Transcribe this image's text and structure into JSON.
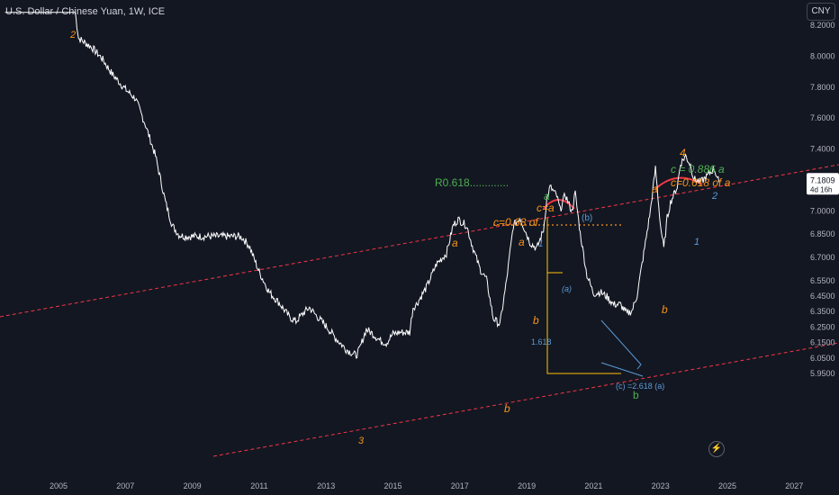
{
  "header": {
    "title": "U.S. Dollar / Chinese Yuan, 1W, ICE",
    "currency_button": "CNY"
  },
  "price_label": {
    "price": "7.1809",
    "countdown": "4d 16h"
  },
  "chart_data": {
    "type": "line",
    "ylim": [
      5.88,
      8.27
    ],
    "xlim": [
      2003.4,
      2027.1
    ],
    "y_ticks": [
      "8.2000",
      "8.0000",
      "7.8000",
      "7.6000",
      "7.4000",
      "7.2000",
      "7.0000",
      "6.8500",
      "6.7000",
      "6.5500",
      "6.4500",
      "6.3500",
      "6.2500",
      "6.1500",
      "6.0500",
      "5.9500"
    ],
    "y_tick_values": [
      8.2,
      8.0,
      7.8,
      7.6,
      7.4,
      7.2,
      7.0,
      6.85,
      6.7,
      6.55,
      6.45,
      6.35,
      6.25,
      6.15,
      6.05,
      5.95
    ],
    "x_ticks": [
      "2005",
      "2007",
      "2009",
      "2011",
      "2013",
      "2015",
      "2017",
      "2019",
      "2021",
      "2023",
      "2025",
      "2027"
    ],
    "x_tick_values": [
      2005,
      2007,
      2009,
      2011,
      2013,
      2015,
      2017,
      2019,
      2021,
      2023,
      2025,
      2027
    ],
    "series": [
      {
        "x": [
          2003.4,
          2004.0,
          2004.5,
          2005.0,
          2005.5,
          2005.6,
          2005.8,
          2006.0,
          2006.3,
          2006.6,
          2007.0,
          2007.3,
          2007.6,
          2007.9,
          2008.0,
          2008.2,
          2008.4,
          2008.6,
          2008.75,
          2009.0,
          2009.5,
          2010.0,
          2010.4,
          2010.5,
          2010.7,
          2011.0,
          2011.3,
          2011.6,
          2011.9,
          2012.1,
          2012.3,
          2012.5,
          2012.7,
          2013.0,
          2013.3,
          2013.6,
          2013.9,
          2014.0,
          2014.2,
          2014.4,
          2014.6,
          2014.8,
          2015.0,
          2015.2,
          2015.5,
          2015.6,
          2015.7,
          2016.0,
          2016.3,
          2016.6,
          2016.8,
          2016.95,
          2017.2,
          2017.4,
          2017.6,
          2017.8,
          2018.0,
          2018.2,
          2018.4,
          2018.6,
          2018.8,
          2018.95,
          2019.1,
          2019.3,
          2019.5,
          2019.6,
          2019.7,
          2019.9,
          2020.0,
          2020.15,
          2020.35,
          2020.45,
          2020.6,
          2020.8,
          2021.0,
          2021.2,
          2021.4,
          2021.6,
          2021.8,
          2022.0,
          2022.15,
          2022.3,
          2022.5,
          2022.7,
          2022.85,
          2023.0,
          2023.1,
          2023.2,
          2023.3,
          2023.5,
          2023.6,
          2023.75,
          2023.9,
          2024.0,
          2024.2,
          2024.4,
          2024.6,
          2024.75
        ],
        "y": [
          8.277,
          8.277,
          8.277,
          8.277,
          8.277,
          8.11,
          8.08,
          8.05,
          7.98,
          7.88,
          7.78,
          7.72,
          7.55,
          7.35,
          7.25,
          7.05,
          6.9,
          6.84,
          6.83,
          6.83,
          6.83,
          6.83,
          6.83,
          6.82,
          6.77,
          6.6,
          6.47,
          6.4,
          6.31,
          6.28,
          6.33,
          6.37,
          6.32,
          6.25,
          6.17,
          6.1,
          6.06,
          6.1,
          6.23,
          6.2,
          6.16,
          6.14,
          6.2,
          6.21,
          6.21,
          6.37,
          6.39,
          6.5,
          6.65,
          6.72,
          6.9,
          6.94,
          6.9,
          6.75,
          6.62,
          6.55,
          6.3,
          6.26,
          6.55,
          6.9,
          6.95,
          6.87,
          6.79,
          6.75,
          6.87,
          7.07,
          7.15,
          7.09,
          7.0,
          7.1,
          6.99,
          7.11,
          6.85,
          6.58,
          6.46,
          6.47,
          6.44,
          6.39,
          6.39,
          6.33,
          6.35,
          6.45,
          6.72,
          7.0,
          7.27,
          6.9,
          6.75,
          6.95,
          7.05,
          7.15,
          7.3,
          7.35,
          7.29,
          7.2,
          7.18,
          7.22,
          7.27,
          7.18
        ]
      }
    ],
    "annotations": [
      "2",
      "3",
      "a",
      "b",
      "a",
      "b",
      "1",
      "a",
      "c=a",
      "(b)",
      "c=0.68 of",
      "(a)",
      "1.618",
      "(c) =2.618 (a)",
      "b",
      "a",
      "b",
      "4",
      "c = 0.886 a",
      "c=0.618 of a",
      "2",
      "1",
      "R0.618.............",
      "1"
    ],
    "colors": {
      "line": "#ffffff",
      "orange": "#f7931a",
      "green": "#4caf50",
      "blue": "#42a5f5",
      "channel": "#f23645",
      "fib": "#ffc107",
      "arc": "#f23645"
    },
    "grid": false
  }
}
